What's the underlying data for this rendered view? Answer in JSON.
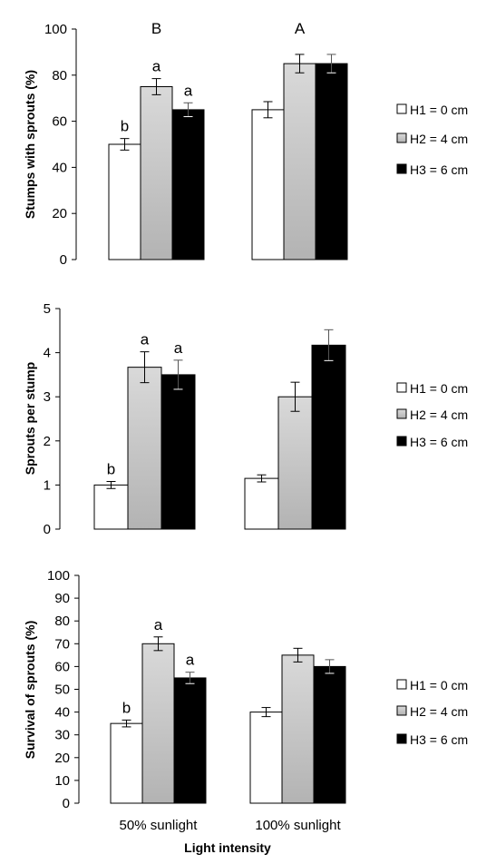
{
  "colors": {
    "H1": "#ffffff",
    "H2_top": "#d9d9d9",
    "H2_mid": "#b3b3b3",
    "H3": "#000000"
  },
  "legend_labels": [
    "H1 = 0 cm",
    "H2 = 4 cm",
    "H3 = 6 cm"
  ],
  "xlabel": "Light intensity",
  "chart_data": [
    {
      "type": "bar",
      "categories": [
        "50% sunlight",
        "100% sunlight"
      ],
      "show_category_labels": false,
      "ylabel": "Stumps with sprouts (%)",
      "ylim": [
        0,
        100
      ],
      "yticks": [
        "0",
        "20",
        "40",
        "60",
        "80",
        "100"
      ],
      "ytick_values": [
        0,
        20,
        40,
        60,
        80,
        100
      ],
      "legend": "right",
      "group_letters": [
        "B",
        "A"
      ],
      "series": [
        {
          "name": "H1 = 0 cm",
          "values": [
            50,
            65
          ],
          "errors": [
            2.5,
            3.5
          ],
          "letters": [
            "b",
            ""
          ]
        },
        {
          "name": "H2 = 4 cm",
          "values": [
            75,
            85
          ],
          "errors": [
            3.5,
            4.0
          ],
          "letters": [
            "a",
            ""
          ]
        },
        {
          "name": "H3 = 6 cm",
          "values": [
            65,
            85
          ],
          "errors": [
            3.0,
            4.0
          ],
          "letters": [
            "a",
            ""
          ]
        }
      ]
    },
    {
      "type": "bar",
      "categories": [
        "50% sunlight",
        "100% sunlight"
      ],
      "show_category_labels": false,
      "ylabel": "Sprouts per stump",
      "ylim": [
        0,
        5
      ],
      "yticks": [
        "0",
        "1",
        "2",
        "3",
        "4",
        "5"
      ],
      "ytick_values": [
        0,
        1,
        2,
        3,
        4,
        5
      ],
      "legend": "right",
      "group_letters": [
        "",
        ""
      ],
      "series": [
        {
          "name": "H1 = 0 cm",
          "values": [
            1.0,
            1.15
          ],
          "errors": [
            0.08,
            0.08
          ],
          "letters": [
            "b",
            ""
          ]
        },
        {
          "name": "H2 = 4 cm",
          "values": [
            3.67,
            3.0
          ],
          "errors": [
            0.35,
            0.33
          ],
          "letters": [
            "a",
            ""
          ]
        },
        {
          "name": "H3 = 6 cm",
          "values": [
            3.5,
            4.17
          ],
          "errors": [
            0.33,
            0.35
          ],
          "letters": [
            "a",
            ""
          ]
        }
      ]
    },
    {
      "type": "bar",
      "categories": [
        "50% sunlight",
        "100% sunlight"
      ],
      "show_category_labels": true,
      "ylabel": "Survival of sprouts (%)",
      "ylim": [
        0,
        100
      ],
      "yticks": [
        "0",
        "10",
        "20",
        "30",
        "40",
        "50",
        "60",
        "70",
        "80",
        "90",
        "100"
      ],
      "ytick_values": [
        0,
        10,
        20,
        30,
        40,
        50,
        60,
        70,
        80,
        90,
        100
      ],
      "legend": "right",
      "group_letters": [
        "",
        ""
      ],
      "series": [
        {
          "name": "H1 = 0 cm",
          "values": [
            35,
            40
          ],
          "errors": [
            1.5,
            2.0
          ],
          "letters": [
            "b",
            ""
          ]
        },
        {
          "name": "H2 = 4 cm",
          "values": [
            70,
            65
          ],
          "errors": [
            3.0,
            3.0
          ],
          "letters": [
            "a",
            ""
          ]
        },
        {
          "name": "H3 = 6 cm",
          "values": [
            55,
            60
          ],
          "errors": [
            2.5,
            3.0
          ],
          "letters": [
            "a",
            ""
          ]
        }
      ]
    }
  ]
}
